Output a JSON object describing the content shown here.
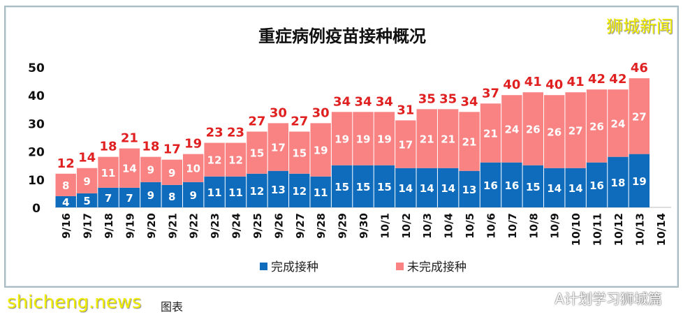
{
  "watermarks": {
    "top_right": "狮城新闻",
    "bottom_left": "shicheng.news",
    "bottom_right": "A计划学习狮城篇",
    "caption": "图表"
  },
  "chart_data": {
    "type": "bar",
    "stacked": true,
    "title": "重症病例疫苗接种概况",
    "categories": [
      "9/16",
      "9/17",
      "9/18",
      "9/19",
      "9/20",
      "9/21",
      "9/22",
      "9/23",
      "9/24",
      "9/25",
      "9/26",
      "9/27",
      "9/28",
      "9/29",
      "9/30",
      "10/1",
      "10/2",
      "10/3",
      "10/4",
      "10/5",
      "10/6",
      "10/7",
      "10/8",
      "10/9",
      "10/10",
      "10/11",
      "10/12",
      "10/13",
      "10/14"
    ],
    "series": [
      {
        "name": "完成接种",
        "color": "#0f6cbd",
        "values": [
          4,
          5,
          7,
          7,
          9,
          8,
          9,
          11,
          11,
          12,
          13,
          12,
          11,
          15,
          15,
          15,
          14,
          14,
          14,
          13,
          16,
          16,
          15,
          14,
          14,
          16,
          18,
          19,
          null
        ]
      },
      {
        "name": "未完成接种",
        "color": "#f98383",
        "values": [
          8,
          9,
          11,
          14,
          9,
          9,
          10,
          12,
          12,
          15,
          17,
          15,
          19,
          19,
          19,
          19,
          17,
          21,
          21,
          21,
          21,
          24,
          26,
          26,
          27,
          26,
          24,
          27,
          null
        ]
      }
    ],
    "totals": [
      12,
      14,
      18,
      21,
      18,
      17,
      19,
      23,
      23,
      27,
      30,
      27,
      30,
      34,
      34,
      34,
      31,
      35,
      35,
      34,
      37,
      40,
      41,
      40,
      41,
      42,
      42,
      46,
      null
    ],
    "total_label_color": "#e02020",
    "ylim": [
      0,
      50
    ],
    "yticks": [
      0,
      10,
      20,
      30,
      40,
      50
    ],
    "grid": false,
    "legend": "bottom"
  }
}
